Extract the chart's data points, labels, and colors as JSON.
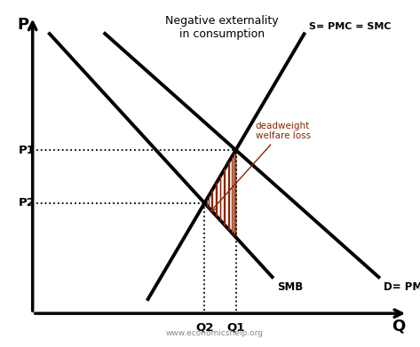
{
  "title": "Negative externality\nin consumption",
  "xlabel": "Q",
  "ylabel": "P",
  "background_color": "#ffffff",
  "line_color": "#000000",
  "deadweight_color": "#8B2500",
  "watermark": "www.economicshelp.org",
  "labels": {
    "S_PMC_SMC": "S= PMC = SMC",
    "D_PMB": "D= PMB",
    "SMB": "SMB",
    "P1": "P1",
    "P2": "P2",
    "Q1": "Q1",
    "Q2": "Q2",
    "deadweight": "deadweight\nwelfare loss"
  },
  "supply_line": {
    "x": [
      0.33,
      0.73
    ],
    "y": [
      0.08,
      0.92
    ]
  },
  "demand_PMB_line": {
    "x": [
      0.22,
      0.92
    ],
    "y": [
      0.92,
      0.15
    ]
  },
  "demand_SMB_line": {
    "x": [
      0.08,
      0.65
    ],
    "y": [
      0.92,
      0.15
    ]
  },
  "xlim": [
    0,
    1
  ],
  "ylim": [
    0,
    1
  ]
}
